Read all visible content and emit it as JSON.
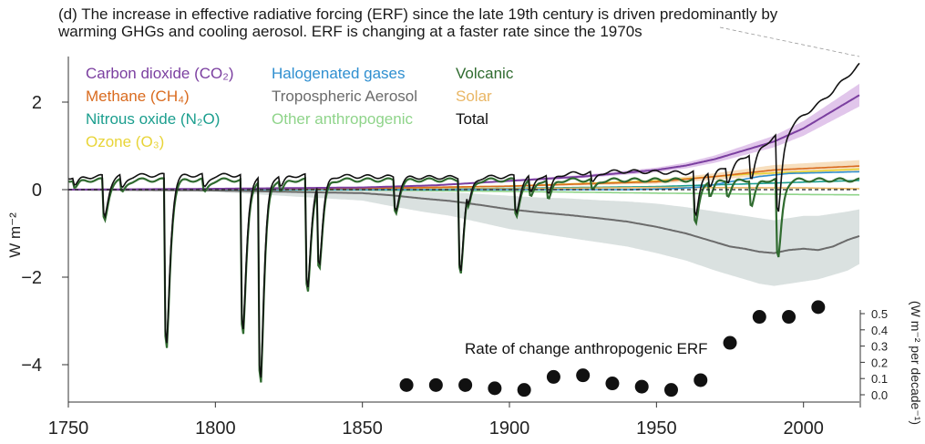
{
  "title_lines": [
    "(d) The increase in effective radiative forcing (ERF) since the late 19th century is driven predominantly by",
    "warming GHGs and cooling aerosol. ERF is changing at a faster rate since the 1970s"
  ],
  "chart_data": [
    {
      "type": "line",
      "ylabel": "W m⁻²",
      "xlim": [
        1750,
        2019
      ],
      "ylim": [
        -4.9,
        3.0
      ],
      "xticks": [
        1750,
        1800,
        1850,
        1900,
        1950,
        2000
      ],
      "yticks": [
        2,
        0,
        -2,
        -4
      ],
      "ytick_labels": [
        "2",
        "0",
        "−2",
        "−4"
      ],
      "grid": false,
      "legend_position": "top-left",
      "legend_columns": [
        [
          "co2",
          "ch4",
          "n2o",
          "o3"
        ],
        [
          "halo",
          "aero",
          "other"
        ],
        [
          "volc",
          "solar",
          "total"
        ]
      ],
      "series": [
        {
          "id": "co2",
          "name": "Carbon dioxide (CO₂)",
          "color": "#7b3fa0",
          "band_color": "#d9b8e6",
          "x": [
            1750,
            1800,
            1850,
            1875,
            1900,
            1925,
            1950,
            1960,
            1970,
            1980,
            1990,
            2000,
            2010,
            2019
          ],
          "y": [
            0.0,
            0.02,
            0.05,
            0.1,
            0.2,
            0.3,
            0.45,
            0.55,
            0.7,
            0.9,
            1.1,
            1.4,
            1.8,
            2.16
          ],
          "band_frac": 0.12
        },
        {
          "id": "ch4",
          "name": "Methane (CH₄)",
          "color": "#d96b1f",
          "x": [
            1750,
            1850,
            1900,
            1950,
            1970,
            1990,
            2019
          ],
          "y": [
            0.0,
            0.03,
            0.08,
            0.18,
            0.3,
            0.45,
            0.54
          ]
        },
        {
          "id": "n2o",
          "name": "Nitrous oxide (N₂O)",
          "color": "#1b9e8e",
          "x": [
            1750,
            1850,
            1900,
            1950,
            1980,
            2019
          ],
          "y": [
            0.0,
            0.01,
            0.03,
            0.07,
            0.13,
            0.21
          ]
        },
        {
          "id": "o3",
          "name": "Ozone (O₃)",
          "color": "#e8d437",
          "x": [
            1750,
            1850,
            1900,
            1950,
            1980,
            2019
          ],
          "y": [
            0.0,
            0.02,
            0.08,
            0.2,
            0.35,
            0.47
          ]
        },
        {
          "id": "halo",
          "name": "Halogenated gases",
          "color": "#2f8fd0",
          "x": [
            1750,
            1940,
            1955,
            1965,
            1975,
            1985,
            1995,
            2019
          ],
          "y": [
            0.0,
            0.0,
            0.02,
            0.06,
            0.18,
            0.3,
            0.37,
            0.41
          ]
        },
        {
          "id": "aero",
          "name": "Tropospheric Aerosol",
          "color": "#6b6b6b",
          "band_color": "#d3dcda",
          "x": [
            1750,
            1800,
            1850,
            1860,
            1870,
            1880,
            1890,
            1900,
            1910,
            1920,
            1930,
            1940,
            1950,
            1960,
            1970,
            1975,
            1980,
            1985,
            1990,
            1995,
            2000,
            2005,
            2010,
            2015,
            2019
          ],
          "y": [
            0.0,
            -0.02,
            -0.08,
            -0.13,
            -0.2,
            -0.26,
            -0.35,
            -0.45,
            -0.52,
            -0.58,
            -0.65,
            -0.73,
            -0.85,
            -1.0,
            -1.2,
            -1.3,
            -1.35,
            -1.42,
            -1.45,
            -1.38,
            -1.35,
            -1.38,
            -1.3,
            -1.15,
            -1.06
          ],
          "band_lo": [
            0.0,
            -0.05,
            -0.25,
            -0.38,
            -0.5,
            -0.6,
            -0.75,
            -0.9,
            -1.0,
            -1.1,
            -1.2,
            -1.3,
            -1.45,
            -1.62,
            -1.85,
            -1.95,
            -2.05,
            -2.15,
            -2.2,
            -2.15,
            -2.1,
            -2.05,
            -1.95,
            -1.85,
            -1.7
          ],
          "band_hi": [
            0.0,
            0.0,
            -0.01,
            -0.02,
            -0.04,
            -0.06,
            -0.1,
            -0.14,
            -0.18,
            -0.2,
            -0.24,
            -0.27,
            -0.32,
            -0.4,
            -0.5,
            -0.55,
            -0.6,
            -0.65,
            -0.7,
            -0.65,
            -0.6,
            -0.6,
            -0.55,
            -0.5,
            -0.45
          ]
        },
        {
          "id": "other",
          "name": "Other anthropogenic",
          "color": "#8fd48a",
          "x": [
            1750,
            1850,
            1900,
            1950,
            1980,
            2019
          ],
          "y": [
            0.0,
            -0.01,
            -0.04,
            -0.08,
            -0.1,
            -0.12
          ]
        },
        {
          "id": "volc",
          "name": "Volcanic",
          "color": "#2f6b2f",
          "baseline": 0.22,
          "eruptions": [
            [
              1752,
              0.18
            ],
            [
              1762,
              0.95
            ],
            [
              1768,
              0.3
            ],
            [
              1783,
              3.95
            ],
            [
              1796,
              0.3
            ],
            [
              1809,
              3.65
            ],
            [
              1815,
              4.75
            ],
            [
              1822,
              0.25
            ],
            [
              1831,
              2.65
            ],
            [
              1835,
              1.95
            ],
            [
              1861,
              0.75
            ],
            [
              1883,
              2.15
            ],
            [
              1886,
              0.35
            ],
            [
              1902,
              0.85
            ],
            [
              1907,
              0.4
            ],
            [
              1913,
              0.45
            ],
            [
              1928,
              0.25
            ],
            [
              1963,
              1.05
            ],
            [
              1968,
              0.35
            ],
            [
              1974,
              0.35
            ],
            [
              1982,
              0.6
            ],
            [
              1991,
              1.85
            ]
          ]
        },
        {
          "id": "solar",
          "name": "Solar",
          "color": "#e9b664",
          "x": [
            1750,
            1800,
            1850,
            1900,
            1950,
            2000,
            2019
          ],
          "y": [
            0.0,
            0.0,
            0.01,
            0.02,
            0.05,
            0.04,
            0.02
          ]
        },
        {
          "id": "total",
          "name": "Total",
          "color": "#111111",
          "x": [
            1750,
            1760,
            1770,
            1780,
            1800,
            1820,
            1850,
            1870,
            1890,
            1900,
            1910,
            1920,
            1930,
            1940,
            1950,
            1960,
            1970,
            1975,
            1980,
            1985,
            1990,
            1995,
            2000,
            2005,
            2010,
            2015,
            2019
          ],
          "y": [
            0.28,
            0.3,
            0.32,
            0.33,
            0.33,
            0.33,
            0.3,
            0.28,
            0.28,
            0.3,
            0.33,
            0.36,
            0.4,
            0.42,
            0.4,
            0.38,
            0.45,
            0.55,
            0.75,
            0.95,
            1.2,
            1.4,
            1.7,
            1.95,
            2.25,
            2.6,
            2.85
          ]
        }
      ]
    },
    {
      "type": "scatter",
      "annotation": "Rate of change anthropogenic ERF",
      "ylabel": "(W m⁻² per decade⁻¹)",
      "ylim": [
        -0.05,
        0.55
      ],
      "yticks": [
        0.0,
        0.1,
        0.2,
        0.3,
        0.4,
        0.5
      ],
      "ytick_labels": [
        "0.0",
        "0.1",
        "0.2",
        "0.3",
        "0.4",
        "0.5"
      ],
      "x": [
        1865,
        1875,
        1885,
        1895,
        1905,
        1915,
        1925,
        1935,
        1945,
        1955,
        1965,
        1975,
        1985,
        1995,
        2005
      ],
      "y": [
        0.06,
        0.06,
        0.06,
        0.04,
        0.03,
        0.11,
        0.12,
        0.07,
        0.05,
        0.03,
        0.09,
        0.32,
        0.48,
        0.48,
        0.54
      ],
      "color": "#111111"
    }
  ]
}
